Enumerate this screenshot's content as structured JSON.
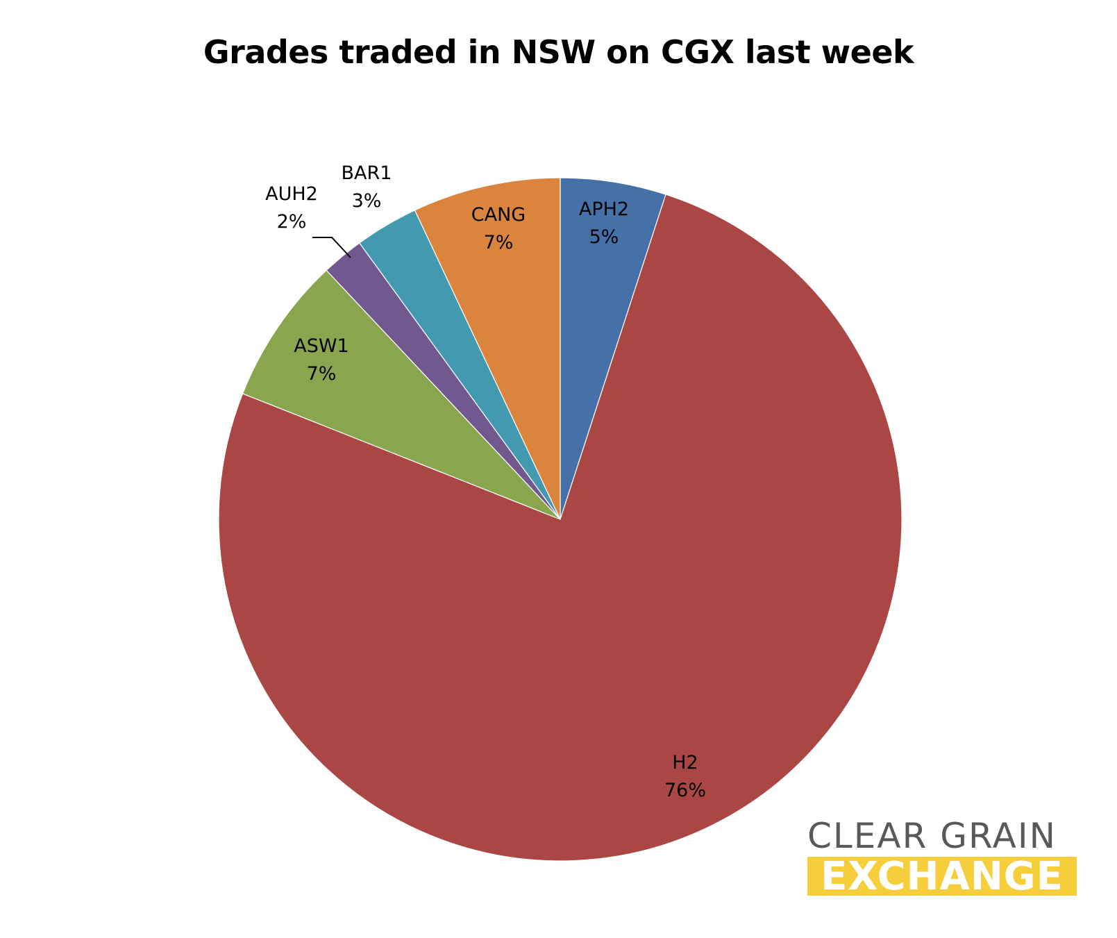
{
  "chart_data": {
    "type": "pie",
    "title": "Grades traded in NSW on CGX last week",
    "slices": [
      {
        "name": "APH2",
        "value": 5,
        "label": "5%",
        "color": "#4571a8"
      },
      {
        "name": "H2",
        "value": 76,
        "label": "76%",
        "color": "#aa4644"
      },
      {
        "name": "ASW1",
        "value": 7,
        "label": "7%",
        "color": "#89a54e"
      },
      {
        "name": "AUH2",
        "value": 2,
        "label": "2%",
        "color": "#71588f"
      },
      {
        "name": "BAR1",
        "value": 3,
        "label": "3%",
        "color": "#4299b0"
      },
      {
        "name": "CANG",
        "value": 7,
        "label": "7%",
        "color": "#db843d"
      }
    ],
    "start_angle": "12 o'clock",
    "direction": "clockwise",
    "legend": "none"
  },
  "logo": {
    "line1": "CLEAR GRAIN",
    "line2": "EXCHANGE",
    "text_color": "#595959",
    "highlight_color": "#f6cd3a"
  }
}
